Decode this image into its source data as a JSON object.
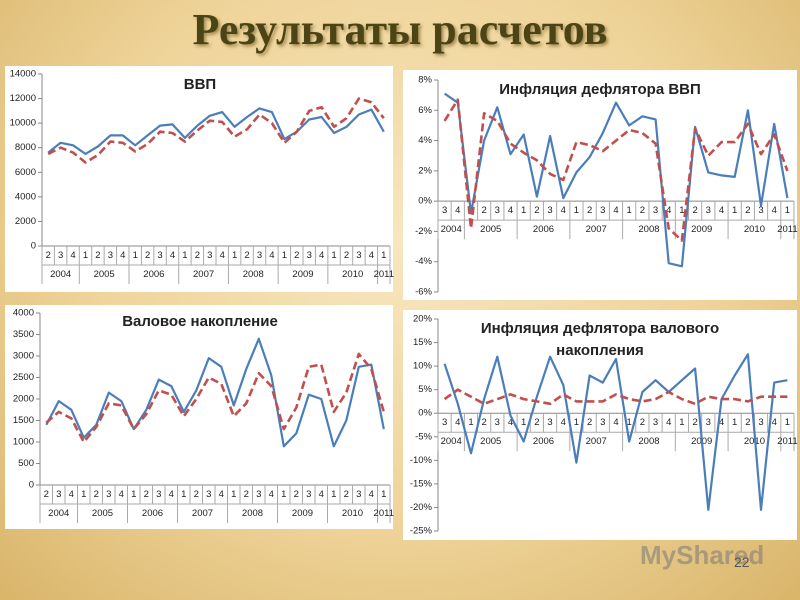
{
  "title": "Результаты расчетов",
  "page_number": "22",
  "watermark": "MyShared",
  "chart_data": [
    {
      "type": "line",
      "title": "ВВП",
      "categories": [
        "2",
        "3",
        "4",
        "1",
        "2",
        "3",
        "4",
        "1",
        "2",
        "3",
        "4",
        "1",
        "2",
        "3",
        "4",
        "1",
        "2",
        "3",
        "4",
        "1",
        "2",
        "3",
        "4",
        "1",
        "2",
        "3",
        "4",
        "1"
      ],
      "category_groups": [
        "2004",
        "2004",
        "2004",
        "2005",
        "2005",
        "2005",
        "2005",
        "2006",
        "2006",
        "2006",
        "2006",
        "2007",
        "2007",
        "2007",
        "2007",
        "2008",
        "2008",
        "2008",
        "2008",
        "2009",
        "2009",
        "2009",
        "2009",
        "2010",
        "2010",
        "2010",
        "2010",
        "2011"
      ],
      "ylim": [
        0,
        14000
      ],
      "yticks": [
        0,
        2000,
        4000,
        6000,
        8000,
        10000,
        12000,
        14000
      ],
      "series": [
        {
          "color": "#4a7ebb",
          "dashed": false,
          "values": [
            7600,
            8400,
            8200,
            7500,
            8100,
            9000,
            9000,
            8200,
            9000,
            9800,
            9900,
            8800,
            9800,
            10600,
            10900,
            9700,
            10500,
            11200,
            10900,
            8700,
            9300,
            10300,
            10500,
            9200,
            9700,
            10700,
            11100,
            9300
          ]
        },
        {
          "color": "#c0504d",
          "dashed": true,
          "values": [
            7500,
            8000,
            7600,
            6800,
            7400,
            8500,
            8400,
            7700,
            8300,
            9300,
            9200,
            8500,
            9400,
            10200,
            10100,
            8900,
            9500,
            10700,
            10000,
            8400,
            9300,
            11000,
            11300,
            9700,
            10400,
            12000,
            11700,
            10400
          ]
        }
      ]
    },
    {
      "type": "line",
      "title": "Инфляция дефлятора ВВП",
      "categories": [
        "3",
        "4",
        "1",
        "2",
        "3",
        "4",
        "1",
        "2",
        "3",
        "4",
        "1",
        "2",
        "3",
        "4",
        "1",
        "2",
        "3",
        "4",
        "1",
        "2",
        "3",
        "4",
        "1",
        "2",
        "3",
        "4",
        "1"
      ],
      "category_groups": [
        "2004",
        "2004",
        "2005",
        "2005",
        "2005",
        "2005",
        "2006",
        "2006",
        "2006",
        "2006",
        "2007",
        "2007",
        "2007",
        "2007",
        "2008",
        "2008",
        "2008",
        "2008",
        "2009",
        "2009",
        "2009",
        "2009",
        "2010",
        "2010",
        "2010",
        "2010",
        "2011"
      ],
      "ylim": [
        -6,
        8
      ],
      "yticks": [
        {
          "value": -6,
          "label": "-6%"
        },
        {
          "value": -4,
          "label": "-4%"
        },
        {
          "value": -2,
          "label": "-2%"
        },
        {
          "value": 0,
          "label": "0%"
        },
        {
          "value": 2,
          "label": "2%"
        },
        {
          "value": 4,
          "label": "4%"
        },
        {
          "value": 6,
          "label": "6%"
        },
        {
          "value": 8,
          "label": "8%"
        }
      ],
      "series": [
        {
          "color": "#4a7ebb",
          "dashed": false,
          "values": [
            7.1,
            6.5,
            -0.8,
            4.0,
            6.2,
            3.1,
            4.4,
            0.3,
            4.3,
            0.2,
            1.9,
            2.9,
            4.5,
            6.5,
            5.0,
            5.6,
            5.4,
            -4.1,
            -4.3,
            4.9,
            1.9,
            1.7,
            1.6,
            6.0,
            -0.3,
            5.1,
            0.2
          ]
        },
        {
          "color": "#c0504d",
          "dashed": true,
          "values": [
            5.3,
            6.7,
            -1.8,
            5.8,
            5.3,
            3.8,
            3.2,
            2.7,
            1.8,
            1.4,
            3.9,
            3.7,
            3.3,
            4.0,
            4.7,
            4.5,
            3.8,
            -1.8,
            -2.6,
            4.8,
            3.0,
            3.9,
            3.9,
            5.1,
            3.1,
            4.4,
            2.0
          ]
        }
      ]
    },
    {
      "type": "line",
      "title": "Валовое накопление",
      "categories": [
        "2",
        "3",
        "4",
        "1",
        "2",
        "3",
        "4",
        "1",
        "2",
        "3",
        "4",
        "1",
        "2",
        "3",
        "4",
        "1",
        "2",
        "3",
        "4",
        "1",
        "2",
        "3",
        "4",
        "1",
        "2",
        "3",
        "4",
        "1"
      ],
      "category_groups": [
        "2004",
        "2004",
        "2004",
        "2005",
        "2005",
        "2005",
        "2005",
        "2006",
        "2006",
        "2006",
        "2006",
        "2007",
        "2007",
        "2007",
        "2007",
        "2008",
        "2008",
        "2008",
        "2008",
        "2009",
        "2009",
        "2009",
        "2009",
        "2010",
        "2010",
        "2010",
        "2010",
        "2011"
      ],
      "ylim": [
        0,
        4000
      ],
      "yticks": [
        0,
        500,
        1000,
        1500,
        2000,
        2500,
        3000,
        3500,
        4000
      ],
      "series": [
        {
          "color": "#4a7ebb",
          "dashed": false,
          "values": [
            1400,
            1950,
            1750,
            1100,
            1400,
            2150,
            1950,
            1300,
            1750,
            2450,
            2300,
            1700,
            2200,
            2950,
            2750,
            1850,
            2700,
            3400,
            2550,
            900,
            1200,
            2100,
            2000,
            900,
            1500,
            2750,
            2800,
            1300
          ]
        },
        {
          "color": "#c0504d",
          "dashed": true,
          "values": [
            1450,
            1700,
            1550,
            1000,
            1350,
            1900,
            1850,
            1300,
            1650,
            2200,
            2100,
            1600,
            2000,
            2500,
            2350,
            1600,
            1900,
            2600,
            2300,
            1300,
            1800,
            2750,
            2800,
            1700,
            2150,
            3050,
            2700,
            1700
          ]
        }
      ]
    },
    {
      "type": "line",
      "title": "Инфляция дефлятора валового накопления",
      "categories": [
        "3",
        "4",
        "1",
        "2",
        "3",
        "4",
        "1",
        "2",
        "3",
        "4",
        "1",
        "2",
        "3",
        "4",
        "1",
        "2",
        "3",
        "4",
        "1",
        "2",
        "3",
        "4",
        "1",
        "2",
        "3",
        "4",
        "1"
      ],
      "category_groups": [
        "2004",
        "2004",
        "2005",
        "2005",
        "2005",
        "2005",
        "2006",
        "2006",
        "2006",
        "2006",
        "2007",
        "2007",
        "2007",
        "2007",
        "2008",
        "2008",
        "2008",
        "2008",
        "2009",
        "2009",
        "2009",
        "2009",
        "2010",
        "2010",
        "2010",
        "2010",
        "2011"
      ],
      "ylim": [
        -25,
        20
      ],
      "yticks": [
        {
          "value": -25,
          "label": "-25%"
        },
        {
          "value": -20,
          "label": "-20%"
        },
        {
          "value": -15,
          "label": "-15%"
        },
        {
          "value": -10,
          "label": "-10%"
        },
        {
          "value": -5,
          "label": "-5%"
        },
        {
          "value": 0,
          "label": "0%"
        },
        {
          "value": 5,
          "label": "5%"
        },
        {
          "value": 10,
          "label": "10%"
        },
        {
          "value": 15,
          "label": "15%"
        },
        {
          "value": 20,
          "label": "20%"
        }
      ],
      "series": [
        {
          "color": "#4a7ebb",
          "dashed": false,
          "values": [
            10.5,
            2,
            -8.5,
            3,
            12,
            -0.5,
            -6,
            3.5,
            12,
            6,
            -10.5,
            8,
            6.5,
            11.5,
            -6,
            4.5,
            7,
            4.5,
            7,
            9.5,
            -20.5,
            3,
            8,
            12.5,
            -20.5,
            6.5,
            7
          ]
        },
        {
          "color": "#c0504d",
          "dashed": true,
          "values": [
            3,
            5,
            3.5,
            2,
            3,
            4,
            3,
            2.5,
            2,
            4,
            2.5,
            2.5,
            2.5,
            4,
            3,
            2.5,
            3,
            4.5,
            3,
            2,
            3.5,
            3,
            3,
            2.5,
            3.5,
            3.5,
            3.5
          ]
        }
      ]
    }
  ]
}
